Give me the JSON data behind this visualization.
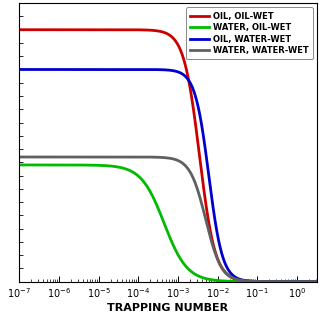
{
  "xlabel": "TRAPPING NUMBER",
  "xlim": [
    -7,
    0.5
  ],
  "ylim": [
    0,
    1.05
  ],
  "legend_entries": [
    {
      "label": "OIL, OIL-WET",
      "color": "#cc0000",
      "lw": 2.0
    },
    {
      "label": "WATER, OIL-WET",
      "color": "#00bb00",
      "lw": 2.0
    },
    {
      "label": "OIL, WATER-WET",
      "color": "#0000cc",
      "lw": 2.0
    },
    {
      "label": "WATER, WATER-WET",
      "color": "#606060",
      "lw": 2.0
    }
  ],
  "curves": [
    {
      "color": "#cc0000",
      "S_hi": 0.95,
      "S_lo": 0.0,
      "Nt_50": 0.0035,
      "k": 2.2
    },
    {
      "color": "#00bb00",
      "S_hi": 0.44,
      "S_lo": 0.0,
      "Nt_50": 0.00045,
      "k": 1.5
    },
    {
      "color": "#0000cc",
      "S_hi": 0.8,
      "S_lo": 0.0,
      "Nt_50": 0.006,
      "k": 2.5
    },
    {
      "color": "#606060",
      "S_hi": 0.47,
      "S_lo": 0.0,
      "Nt_50": 0.005,
      "k": 2.2
    }
  ],
  "bg_color": "#ffffff",
  "tick_labelsize": 7,
  "legend_fontsize": 6.0,
  "xlabel_fontsize": 8
}
